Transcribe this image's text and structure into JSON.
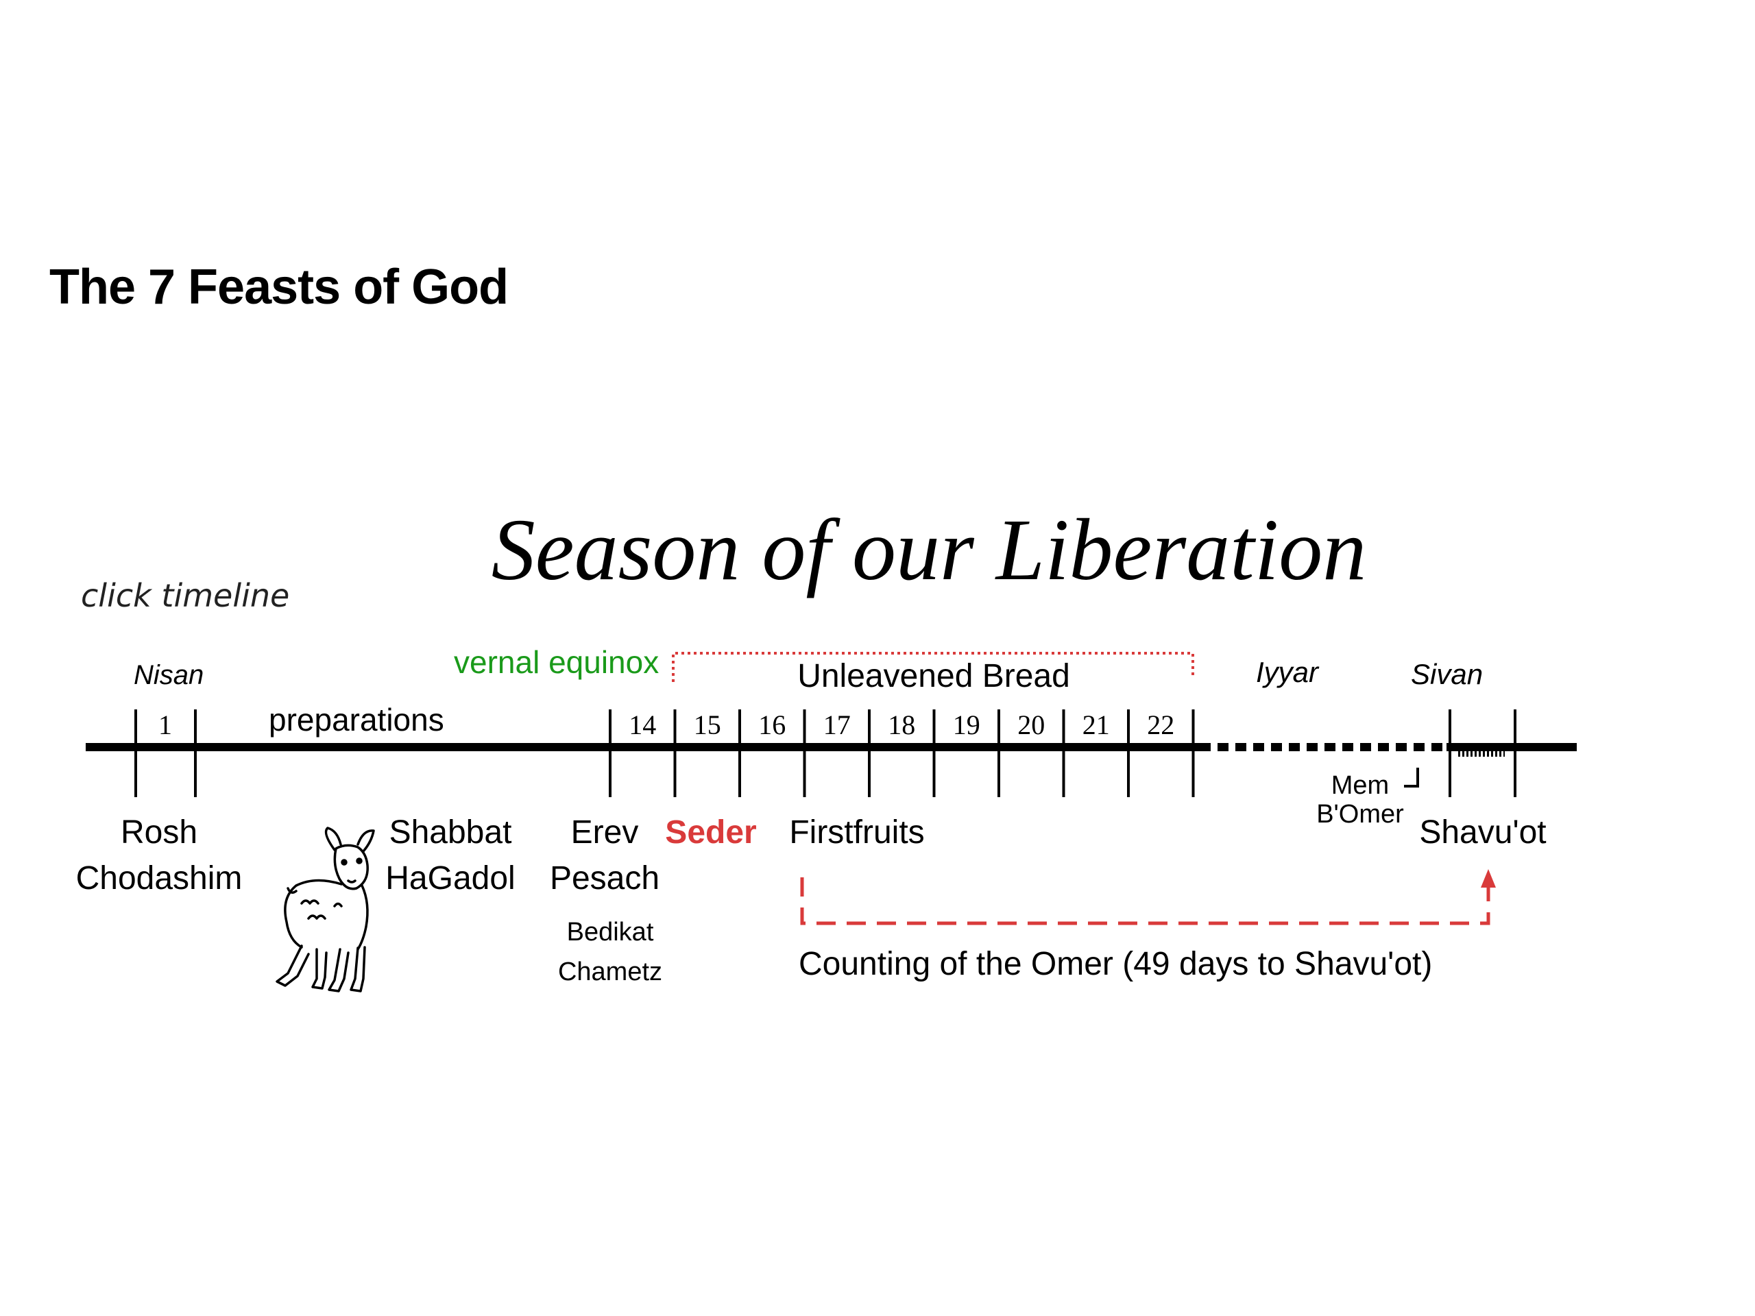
{
  "slide": {
    "title": "The 7 Feasts of God"
  },
  "diagram": {
    "heading": "Season of our Liberation",
    "hint": "click timeline",
    "months": {
      "nisan": "Nisan",
      "iyyar": "Iyyar",
      "sivan": "Sivan"
    },
    "equinox_label": "vernal equinox",
    "unleavened_label": "Unleavened Bread",
    "preparations_label": "preparations",
    "day_one": "1",
    "days": [
      "14",
      "15",
      "16",
      "17",
      "18",
      "19",
      "20",
      "21",
      "22"
    ],
    "events": {
      "rosh_line1": "Rosh",
      "rosh_line2": "Chodashim",
      "shabbat_line1": "Shabbat",
      "shabbat_line2": "HaGadol",
      "erev_line1": "Erev",
      "erev_line2": "Pesach",
      "bedikat_line1": "Bedikat",
      "bedikat_line2": "Chametz",
      "seder": "Seder",
      "firstfruits": "Firstfruits",
      "mem_line1": "Mem",
      "mem_line2": "B'Omer",
      "shavuot": "Shavu'ot"
    },
    "omer_label": "Counting of the Omer (49 days to Shavu'ot)",
    "colors": {
      "line": "#000000",
      "equinox": "#1a9a1a",
      "accent_red": "#d93a3a"
    }
  }
}
